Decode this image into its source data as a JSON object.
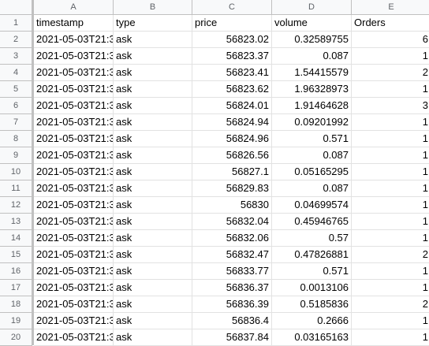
{
  "columns": [
    "A",
    "B",
    "C",
    "D",
    "E"
  ],
  "headers": [
    "timestamp",
    "type",
    "price",
    "volume",
    "Orders"
  ],
  "rows": [
    {
      "n": "1"
    },
    {
      "n": "2",
      "ts": "2021-05-03T21:3",
      "type": "ask",
      "price": "56823.02",
      "volume": "0.32589755",
      "orders": "6"
    },
    {
      "n": "3",
      "ts": "2021-05-03T21:3",
      "type": "ask",
      "price": "56823.37",
      "volume": "0.087",
      "orders": "1"
    },
    {
      "n": "4",
      "ts": "2021-05-03T21:3",
      "type": "ask",
      "price": "56823.41",
      "volume": "1.54415579",
      "orders": "2"
    },
    {
      "n": "5",
      "ts": "2021-05-03T21:3",
      "type": "ask",
      "price": "56823.62",
      "volume": "1.96328973",
      "orders": "1"
    },
    {
      "n": "6",
      "ts": "2021-05-03T21:3",
      "type": "ask",
      "price": "56824.01",
      "volume": "1.91464628",
      "orders": "3"
    },
    {
      "n": "7",
      "ts": "2021-05-03T21:3",
      "type": "ask",
      "price": "56824.94",
      "volume": "0.09201992",
      "orders": "1"
    },
    {
      "n": "8",
      "ts": "2021-05-03T21:3",
      "type": "ask",
      "price": "56824.96",
      "volume": "0.571",
      "orders": "1"
    },
    {
      "n": "9",
      "ts": "2021-05-03T21:3",
      "type": "ask",
      "price": "56826.56",
      "volume": "0.087",
      "orders": "1"
    },
    {
      "n": "10",
      "ts": "2021-05-03T21:3",
      "type": "ask",
      "price": "56827.1",
      "volume": "0.05165295",
      "orders": "1"
    },
    {
      "n": "11",
      "ts": "2021-05-03T21:3",
      "type": "ask",
      "price": "56829.83",
      "volume": "0.087",
      "orders": "1"
    },
    {
      "n": "12",
      "ts": "2021-05-03T21:3",
      "type": "ask",
      "price": "56830",
      "volume": "0.04699574",
      "orders": "1"
    },
    {
      "n": "13",
      "ts": "2021-05-03T21:3",
      "type": "ask",
      "price": "56832.04",
      "volume": "0.45946765",
      "orders": "1"
    },
    {
      "n": "14",
      "ts": "2021-05-03T21:3",
      "type": "ask",
      "price": "56832.06",
      "volume": "0.57",
      "orders": "1"
    },
    {
      "n": "15",
      "ts": "2021-05-03T21:3",
      "type": "ask",
      "price": "56832.47",
      "volume": "0.47826881",
      "orders": "2"
    },
    {
      "n": "16",
      "ts": "2021-05-03T21:3",
      "type": "ask",
      "price": "56833.77",
      "volume": "0.571",
      "orders": "1"
    },
    {
      "n": "17",
      "ts": "2021-05-03T21:3",
      "type": "ask",
      "price": "56836.37",
      "volume": "0.0013106",
      "orders": "1"
    },
    {
      "n": "18",
      "ts": "2021-05-03T21:3",
      "type": "ask",
      "price": "56836.39",
      "volume": "0.5185836",
      "orders": "2"
    },
    {
      "n": "19",
      "ts": "2021-05-03T21:3",
      "type": "ask",
      "price": "56836.4",
      "volume": "0.2666",
      "orders": "1"
    },
    {
      "n": "20",
      "ts": "2021-05-03T21:3",
      "type": "ask",
      "price": "56837.84",
      "volume": "0.03165163",
      "orders": "1"
    }
  ]
}
